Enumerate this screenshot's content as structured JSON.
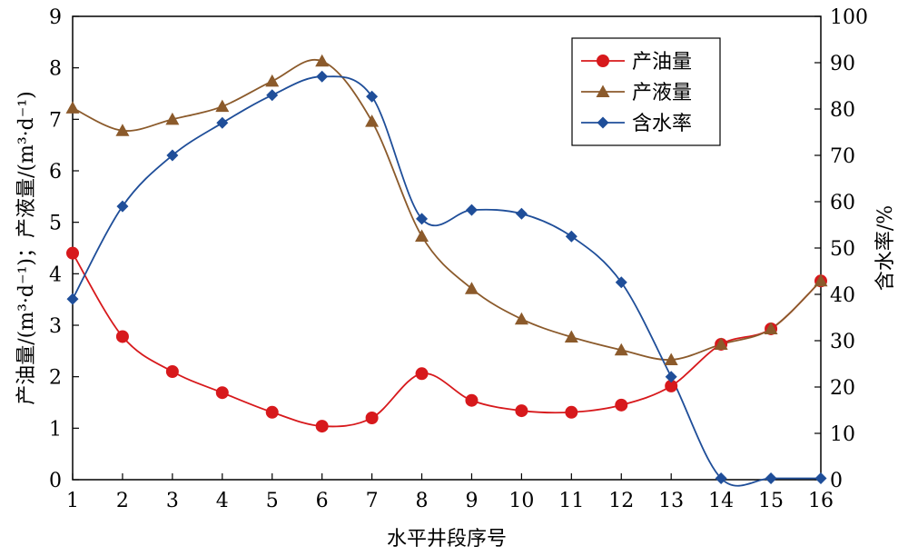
{
  "chart_data": {
    "type": "line",
    "x": [
      1,
      2,
      3,
      4,
      5,
      6,
      7,
      8,
      9,
      10,
      11,
      12,
      13,
      14,
      15,
      16
    ],
    "xlabel": "水平井段序号",
    "xlim": [
      1,
      16
    ],
    "y_left_label": "产油量/(m³·d⁻¹)；产液量/(m³·d⁻¹)",
    "y_left_lim": [
      0,
      9
    ],
    "y_left_ticks": [
      0,
      1,
      2,
      3,
      4,
      5,
      6,
      7,
      8,
      9
    ],
    "y_right_label": "含水率/%",
    "y_right_lim": [
      0,
      100
    ],
    "y_right_ticks": [
      0,
      10,
      20,
      30,
      40,
      50,
      60,
      70,
      80,
      90,
      100
    ],
    "legend_position": "top-right",
    "grid": false,
    "series": [
      {
        "name": "产油量",
        "axis": "left",
        "marker": "circle",
        "color": "#d7191c",
        "values": [
          4.4,
          2.78,
          2.1,
          1.69,
          1.31,
          1.04,
          1.2,
          2.06,
          1.54,
          1.34,
          1.31,
          1.45,
          1.82,
          2.63,
          2.93,
          3.86
        ]
      },
      {
        "name": "产液量",
        "axis": "left",
        "marker": "triangle",
        "color": "#8b5a2b",
        "values": [
          7.22,
          6.78,
          7.0,
          7.25,
          7.74,
          8.13,
          6.96,
          4.73,
          3.71,
          3.12,
          2.77,
          2.52,
          2.33,
          2.63,
          2.93,
          3.86
        ]
      },
      {
        "name": "含水率",
        "axis": "right",
        "marker": "diamond",
        "color": "#1f4e99",
        "values": [
          39,
          59,
          70,
          77,
          83,
          87,
          82.7,
          56.3,
          58.2,
          57.4,
          52.5,
          42.6,
          22.2,
          0.3,
          0.3,
          0.3
        ]
      }
    ]
  }
}
